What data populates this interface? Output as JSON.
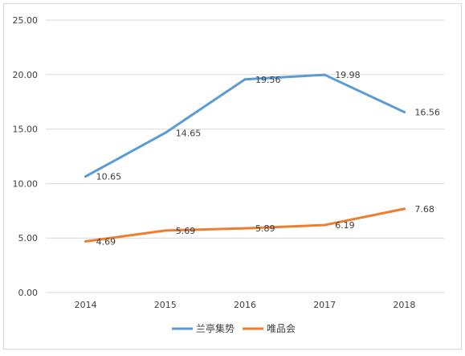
{
  "chart_data": {
    "type": "line",
    "categories": [
      "2014",
      "2015",
      "2016",
      "2017",
      "2018"
    ],
    "series": [
      {
        "name": "兰亭集势",
        "color": "#5B9BD5",
        "values": [
          10.65,
          14.65,
          19.56,
          19.98,
          16.56
        ]
      },
      {
        "name": "唯品会",
        "color": "#ED7D31",
        "values": [
          4.69,
          5.69,
          5.89,
          6.19,
          7.68
        ]
      }
    ],
    "y_ticks": [
      "0.00",
      "5.00",
      "10.00",
      "15.00",
      "20.00",
      "25.00"
    ],
    "ylim": [
      0,
      25
    ],
    "grid": true,
    "legend_position": "bottom",
    "data_labels": true
  }
}
